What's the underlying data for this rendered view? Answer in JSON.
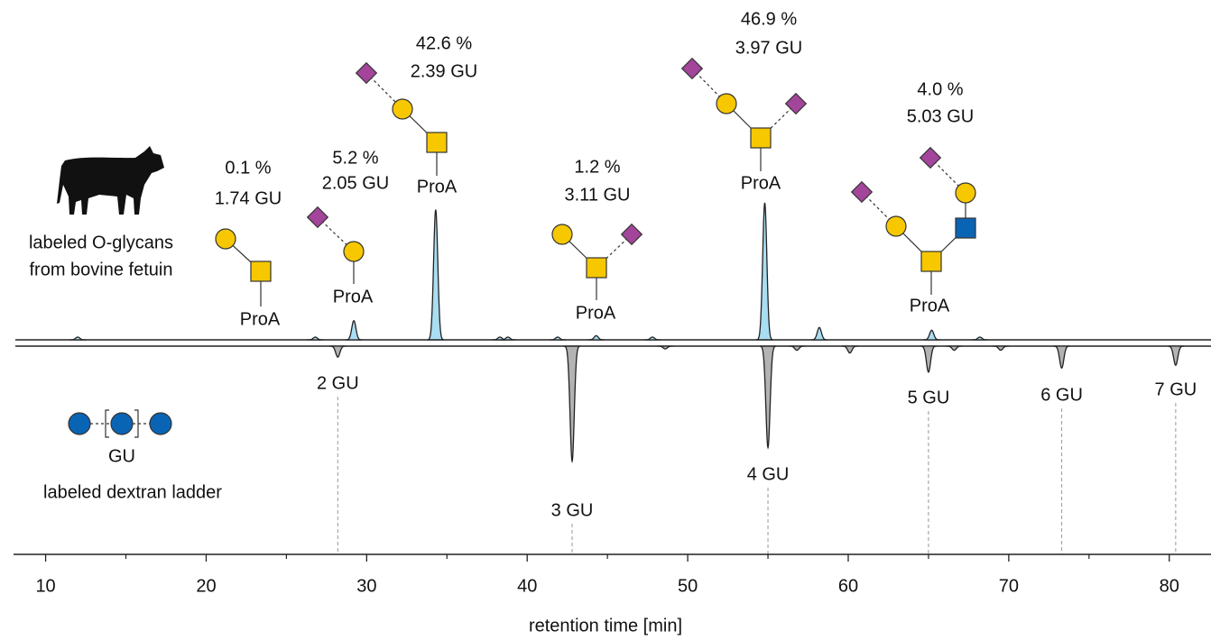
{
  "chart_data": {
    "type": "chromatogram",
    "xlabel": "retention time [min]",
    "xlim": [
      8,
      82.6
    ],
    "xticks": [
      10,
      20,
      30,
      40,
      50,
      60,
      70,
      80
    ],
    "xticks_minor": [
      15,
      25,
      35,
      45,
      55,
      65,
      75
    ],
    "series": [
      {
        "name_lines": [
          "labeled O-glycans",
          "from bovine fetuin"
        ],
        "color": "#a9def2",
        "direction": "up",
        "peaks": {
          "x": [
            12.0,
            26.8,
            29.2,
            34.3,
            38.3,
            38.8,
            41.9,
            44.3,
            47.8,
            54.8,
            58.2,
            65.2,
            68.2
          ],
          "height": [
            2,
            2,
            14,
            95,
            2,
            2,
            2,
            3,
            2,
            100,
            9,
            7,
            2
          ]
        }
      },
      {
        "name_lines": [
          "labeled dextran ladder"
        ],
        "symbol_label": "GU",
        "color": "#b3b3b3",
        "direction": "down",
        "peaks": {
          "x": [
            28.2,
            42.8,
            48.6,
            55.0,
            56.8,
            60.1,
            65.0,
            66.6,
            69.5,
            73.3,
            80.4
          ],
          "height": [
            8,
            84,
            2,
            74,
            3,
            5,
            19,
            3,
            3,
            16,
            14
          ]
        }
      }
    ],
    "annotations": [
      {
        "percent": "0.1 %",
        "gu": "1.74 GU",
        "conjugate": "ProA"
      },
      {
        "percent": "5.2 %",
        "gu": "2.05 GU",
        "conjugate": "ProA"
      },
      {
        "percent": "42.6 %",
        "gu": "2.39 GU",
        "conjugate": "ProA"
      },
      {
        "percent": "1.2 %",
        "gu": "3.11 GU",
        "conjugate": "ProA"
      },
      {
        "percent": "46.9 %",
        "gu": "3.97 GU",
        "conjugate": "ProA"
      },
      {
        "percent": "4.0 %",
        "gu": "5.03 GU",
        "conjugate": "ProA"
      }
    ],
    "ladder_labels": {
      "x": [
        28.2,
        42.8,
        55.0,
        65.0,
        73.3,
        80.4
      ],
      "labels": [
        "2 GU",
        "3 GU",
        "4 GU",
        "5 GU",
        "6 GU",
        "7 GU"
      ]
    }
  }
}
